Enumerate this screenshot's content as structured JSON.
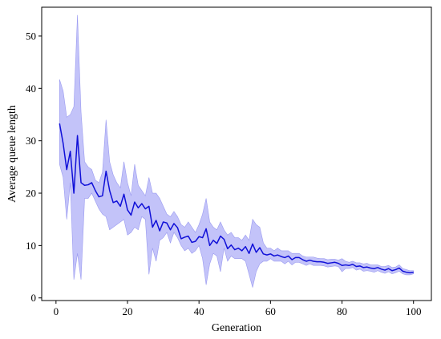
{
  "chart_data": {
    "type": "line",
    "xlabel": "Generation",
    "ylabel": "Average queue length",
    "xlim": [
      -4,
      105
    ],
    "ylim": [
      -0.5,
      55.5
    ],
    "xticks": [
      0,
      20,
      40,
      60,
      80,
      100
    ],
    "yticks": [
      0,
      10,
      20,
      30,
      40,
      50
    ],
    "grid": false,
    "colors": {
      "line": "#1010d8",
      "band": "#b8b8f8",
      "band_edge": "#9a9af0"
    },
    "series": [
      {
        "x": [
          1,
          2,
          3,
          4,
          5,
          6,
          7,
          8,
          9,
          10,
          11,
          12,
          13,
          14,
          15,
          16,
          17,
          18,
          19,
          20,
          21,
          22,
          23,
          24,
          25,
          26,
          27,
          28,
          29,
          30,
          31,
          32,
          33,
          34,
          35,
          36,
          37,
          38,
          39,
          40,
          41,
          42,
          43,
          44,
          45,
          46,
          47,
          48,
          49,
          50,
          51,
          52,
          53,
          54,
          55,
          56,
          57,
          58,
          59,
          60,
          61,
          62,
          63,
          64,
          65,
          66,
          67,
          68,
          69,
          70,
          71,
          72,
          73,
          74,
          75,
          76,
          77,
          78,
          79,
          80,
          81,
          82,
          83,
          84,
          85,
          86,
          87,
          88,
          89,
          90,
          91,
          92,
          93,
          94,
          95,
          96,
          97,
          98,
          99,
          100
        ],
        "mean": [
          33.3,
          29.5,
          24.5,
          28.0,
          20.0,
          31.0,
          22.0,
          21.5,
          21.6,
          22.0,
          20.5,
          19.3,
          19.5,
          24.2,
          20.5,
          18.2,
          18.5,
          17.5,
          19.8,
          16.8,
          15.8,
          18.3,
          17.2,
          18.0,
          17.0,
          17.5,
          13.5,
          14.8,
          12.8,
          14.5,
          14.3,
          13.0,
          14.2,
          13.4,
          11.3,
          11.6,
          11.8,
          10.6,
          10.8,
          11.7,
          11.5,
          13.2,
          10.0,
          11.0,
          10.4,
          11.8,
          11.2,
          9.4,
          10.1,
          9.2,
          9.5,
          9.0,
          9.8,
          8.5,
          10.3,
          8.7,
          9.6,
          8.4,
          8.2,
          8.4,
          8.0,
          8.2,
          7.9,
          7.7,
          8.0,
          7.3,
          7.7,
          7.7,
          7.3,
          7.0,
          7.2,
          7.0,
          6.9,
          6.9,
          6.8,
          6.6,
          6.7,
          6.8,
          6.6,
          6.2,
          6.3,
          6.2,
          6.4,
          6.0,
          6.1,
          5.8,
          5.9,
          5.7,
          5.6,
          5.8,
          5.5,
          5.3,
          5.6,
          5.2,
          5.4,
          5.7,
          5.1,
          4.9,
          4.8,
          4.9
        ],
        "upper": [
          41.7,
          39.5,
          34.5,
          35.0,
          36.5,
          54.0,
          35.5,
          26.0,
          25.0,
          24.5,
          22.5,
          22.0,
          24.0,
          34.0,
          26.0,
          23.5,
          22.0,
          21.0,
          26.0,
          22.0,
          19.5,
          25.5,
          21.5,
          20.5,
          19.5,
          23.0,
          20.0,
          20.0,
          19.0,
          17.5,
          16.0,
          15.5,
          16.5,
          15.5,
          14.0,
          13.5,
          14.5,
          13.5,
          12.5,
          14.0,
          16.0,
          19.0,
          14.5,
          13.5,
          13.0,
          14.5,
          13.0,
          12.0,
          12.5,
          11.5,
          11.5,
          11.0,
          12.0,
          11.0,
          15.0,
          14.0,
          13.5,
          10.5,
          9.5,
          9.5,
          9.0,
          9.5,
          9.0,
          9.0,
          9.0,
          8.5,
          8.5,
          8.5,
          8.0,
          7.8,
          7.8,
          7.8,
          7.6,
          7.5,
          7.5,
          7.3,
          7.4,
          7.4,
          7.2,
          7.5,
          7.0,
          6.8,
          7.0,
          6.7,
          6.7,
          6.5,
          6.6,
          6.3,
          6.3,
          6.3,
          6.0,
          6.0,
          6.2,
          5.8,
          5.9,
          6.3,
          5.6,
          5.4,
          5.2,
          5.2
        ],
        "lower": [
          25.5,
          23.0,
          15.0,
          22.0,
          3.5,
          8.5,
          3.5,
          19.0,
          19.0,
          20.0,
          18.5,
          17.0,
          16.0,
          15.5,
          13.0,
          13.5,
          14.0,
          14.5,
          15.0,
          12.0,
          12.5,
          13.5,
          13.0,
          15.5,
          15.0,
          4.5,
          9.5,
          7.0,
          11.0,
          11.5,
          12.5,
          10.5,
          12.5,
          11.5,
          10.0,
          9.0,
          9.5,
          8.5,
          9.0,
          10.0,
          7.5,
          2.5,
          6.5,
          8.5,
          8.0,
          5.0,
          9.5,
          7.0,
          8.0,
          7.5,
          7.5,
          7.5,
          7.0,
          4.5,
          2.0,
          5.0,
          6.5,
          7.0,
          7.0,
          7.5,
          7.0,
          7.0,
          7.0,
          6.5,
          7.0,
          6.3,
          6.8,
          6.8,
          6.5,
          6.2,
          6.5,
          6.2,
          6.2,
          6.2,
          6.1,
          5.9,
          6.0,
          6.1,
          6.0,
          5.0,
          5.6,
          5.6,
          5.8,
          5.3,
          5.5,
          5.1,
          5.2,
          5.1,
          4.9,
          5.2,
          4.9,
          4.7,
          5.0,
          4.6,
          4.8,
          5.1,
          4.6,
          4.4,
          4.4,
          4.6
        ]
      }
    ]
  }
}
